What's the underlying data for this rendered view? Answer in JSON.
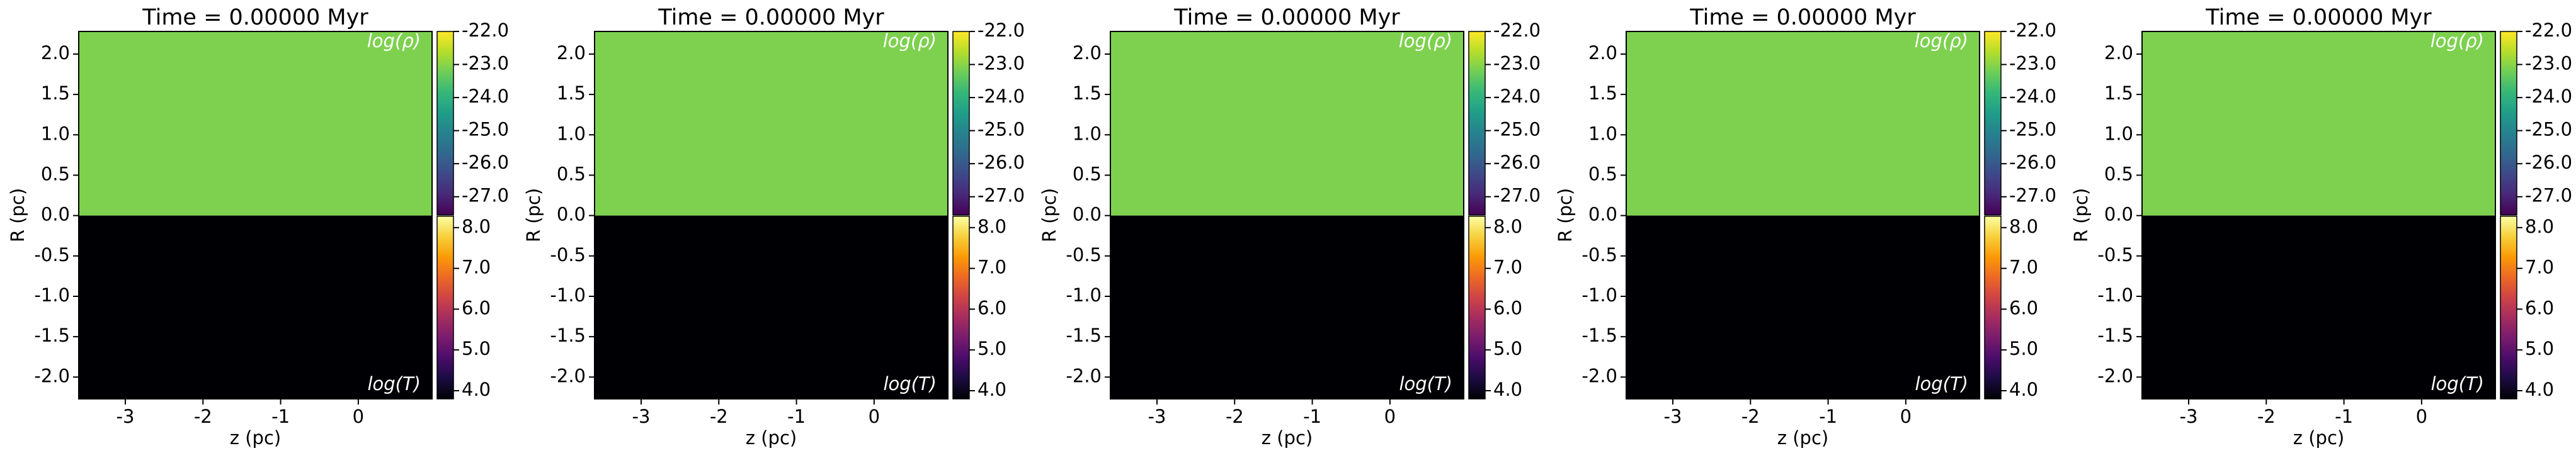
{
  "chart_data": [
    {
      "type": "heatmap",
      "title": "Time = 0.00000 Myr",
      "xlabel": "z (pc)",
      "ylabel": "R (pc)",
      "xlim": [
        -3.6,
        0.95
      ],
      "ylim": [
        -2.27,
        2.28
      ],
      "xticks": [
        -3,
        -2,
        -1,
        0
      ],
      "yticks": [
        {
          "value": -2,
          "label": "-2.0"
        },
        -1.5,
        {
          "value": -1,
          "label": "-1.0"
        },
        -0.5,
        {
          "value": 0,
          "label": "0.0"
        },
        0.5,
        {
          "value": 1,
          "label": "1.0"
        },
        1.5,
        {
          "value": 2,
          "label": "2.0"
        }
      ],
      "split": 0,
      "regions": [
        {
          "label": "log(ρ)",
          "value": -23.1,
          "clim": [
            -27.55,
            -22
          ],
          "cticks": [
            {
              "value": -27,
              "label": "-27.0"
            },
            {
              "value": -26,
              "label": "-26.0"
            },
            {
              "value": -25,
              "label": "-25.0"
            },
            {
              "value": -24,
              "label": "-24.0"
            },
            {
              "value": -23,
              "label": "-23.0"
            },
            {
              "value": -22,
              "label": "-22.0"
            }
          ],
          "colors": [
            "#440154",
            "#482878",
            "#3e4989",
            "#31688e",
            "#26828e",
            "#1f9e89",
            "#35b779",
            "#6ece58",
            "#b5de2b",
            "#fde725"
          ]
        },
        {
          "label": "log(T)",
          "value": 3.8,
          "clim": [
            3.8,
            8.28
          ],
          "cticks": [
            {
              "value": 4,
              "label": "4.0"
            },
            {
              "value": 5,
              "label": "5.0"
            },
            {
              "value": 6,
              "label": "6.0"
            },
            {
              "value": 7,
              "label": "7.0"
            },
            {
              "value": 8,
              "label": "8.0"
            }
          ],
          "colors": [
            "#000004",
            "#1b0c41",
            "#4a0c6b",
            "#781c6d",
            "#a52c60",
            "#cf4446",
            "#ed6925",
            "#fb9b06",
            "#f7d13d",
            "#fcffa4"
          ]
        }
      ]
    },
    {
      "type": "heatmap",
      "title": "Time = 0.00000 Myr",
      "xlabel": "z (pc)",
      "ylabel": "R (pc)",
      "xlim": [
        -3.6,
        0.95
      ],
      "ylim": [
        -2.27,
        2.28
      ],
      "xticks": [
        -3,
        -2,
        -1,
        0
      ],
      "yticks": [
        {
          "value": -2,
          "label": "-2.0"
        },
        -1.5,
        {
          "value": -1,
          "label": "-1.0"
        },
        -0.5,
        {
          "value": 0,
          "label": "0.0"
        },
        0.5,
        {
          "value": 1,
          "label": "1.0"
        },
        1.5,
        {
          "value": 2,
          "label": "2.0"
        }
      ],
      "split": 0,
      "regions": [
        {
          "label": "log(ρ)",
          "value": -23.1,
          "clim": [
            -27.55,
            -22
          ],
          "cticks": [
            {
              "value": -27,
              "label": "-27.0"
            },
            {
              "value": -26,
              "label": "-26.0"
            },
            {
              "value": -25,
              "label": "-25.0"
            },
            {
              "value": -24,
              "label": "-24.0"
            },
            {
              "value": -23,
              "label": "-23.0"
            },
            {
              "value": -22,
              "label": "-22.0"
            }
          ],
          "colors": [
            "#440154",
            "#482878",
            "#3e4989",
            "#31688e",
            "#26828e",
            "#1f9e89",
            "#35b779",
            "#6ece58",
            "#b5de2b",
            "#fde725"
          ]
        },
        {
          "label": "log(T)",
          "value": 3.8,
          "clim": [
            3.8,
            8.28
          ],
          "cticks": [
            {
              "value": 4,
              "label": "4.0"
            },
            {
              "value": 5,
              "label": "5.0"
            },
            {
              "value": 6,
              "label": "6.0"
            },
            {
              "value": 7,
              "label": "7.0"
            },
            {
              "value": 8,
              "label": "8.0"
            }
          ],
          "colors": [
            "#000004",
            "#1b0c41",
            "#4a0c6b",
            "#781c6d",
            "#a52c60",
            "#cf4446",
            "#ed6925",
            "#fb9b06",
            "#f7d13d",
            "#fcffa4"
          ]
        }
      ]
    },
    {
      "type": "heatmap",
      "title": "Time = 0.00000 Myr",
      "xlabel": "z (pc)",
      "ylabel": "R (pc)",
      "xlim": [
        -3.6,
        0.95
      ],
      "ylim": [
        -2.27,
        2.28
      ],
      "xticks": [
        -3,
        -2,
        -1,
        0
      ],
      "yticks": [
        {
          "value": -2,
          "label": "-2.0"
        },
        -1.5,
        {
          "value": -1,
          "label": "-1.0"
        },
        -0.5,
        {
          "value": 0,
          "label": "0.0"
        },
        0.5,
        {
          "value": 1,
          "label": "1.0"
        },
        1.5,
        {
          "value": 2,
          "label": "2.0"
        }
      ],
      "split": 0,
      "regions": [
        {
          "label": "log(ρ)",
          "value": -23.1,
          "clim": [
            -27.55,
            -22
          ],
          "cticks": [
            {
              "value": -27,
              "label": "-27.0"
            },
            {
              "value": -26,
              "label": "-26.0"
            },
            {
              "value": -25,
              "label": "-25.0"
            },
            {
              "value": -24,
              "label": "-24.0"
            },
            {
              "value": -23,
              "label": "-23.0"
            },
            {
              "value": -22,
              "label": "-22.0"
            }
          ],
          "colors": [
            "#440154",
            "#482878",
            "#3e4989",
            "#31688e",
            "#26828e",
            "#1f9e89",
            "#35b779",
            "#6ece58",
            "#b5de2b",
            "#fde725"
          ]
        },
        {
          "label": "log(T)",
          "value": 3.8,
          "clim": [
            3.8,
            8.28
          ],
          "cticks": [
            {
              "value": 4,
              "label": "4.0"
            },
            {
              "value": 5,
              "label": "5.0"
            },
            {
              "value": 6,
              "label": "6.0"
            },
            {
              "value": 7,
              "label": "7.0"
            },
            {
              "value": 8,
              "label": "8.0"
            }
          ],
          "colors": [
            "#000004",
            "#1b0c41",
            "#4a0c6b",
            "#781c6d",
            "#a52c60",
            "#cf4446",
            "#ed6925",
            "#fb9b06",
            "#f7d13d",
            "#fcffa4"
          ]
        }
      ]
    },
    {
      "type": "heatmap",
      "title": "Time = 0.00000 Myr",
      "xlabel": "z (pc)",
      "ylabel": "R (pc)",
      "xlim": [
        -3.6,
        0.95
      ],
      "ylim": [
        -2.27,
        2.28
      ],
      "xticks": [
        -3,
        -2,
        -1,
        0
      ],
      "yticks": [
        {
          "value": -2,
          "label": "-2.0"
        },
        -1.5,
        {
          "value": -1,
          "label": "-1.0"
        },
        -0.5,
        {
          "value": 0,
          "label": "0.0"
        },
        0.5,
        {
          "value": 1,
          "label": "1.0"
        },
        1.5,
        {
          "value": 2,
          "label": "2.0"
        }
      ],
      "split": 0,
      "regions": [
        {
          "label": "log(ρ)",
          "value": -23.1,
          "clim": [
            -27.55,
            -22
          ],
          "cticks": [
            {
              "value": -27,
              "label": "-27.0"
            },
            {
              "value": -26,
              "label": "-26.0"
            },
            {
              "value": -25,
              "label": "-25.0"
            },
            {
              "value": -24,
              "label": "-24.0"
            },
            {
              "value": -23,
              "label": "-23.0"
            },
            {
              "value": -22,
              "label": "-22.0"
            }
          ],
          "colors": [
            "#440154",
            "#482878",
            "#3e4989",
            "#31688e",
            "#26828e",
            "#1f9e89",
            "#35b779",
            "#6ece58",
            "#b5de2b",
            "#fde725"
          ]
        },
        {
          "label": "log(T)",
          "value": 3.8,
          "clim": [
            3.8,
            8.28
          ],
          "cticks": [
            {
              "value": 4,
              "label": "4.0"
            },
            {
              "value": 5,
              "label": "5.0"
            },
            {
              "value": 6,
              "label": "6.0"
            },
            {
              "value": 7,
              "label": "7.0"
            },
            {
              "value": 8,
              "label": "8.0"
            }
          ],
          "colors": [
            "#000004",
            "#1b0c41",
            "#4a0c6b",
            "#781c6d",
            "#a52c60",
            "#cf4446",
            "#ed6925",
            "#fb9b06",
            "#f7d13d",
            "#fcffa4"
          ]
        }
      ]
    },
    {
      "type": "heatmap",
      "title": "Time = 0.00000 Myr",
      "xlabel": "z (pc)",
      "ylabel": "R (pc)",
      "xlim": [
        -3.6,
        0.95
      ],
      "ylim": [
        -2.27,
        2.28
      ],
      "xticks": [
        -3,
        -2,
        -1,
        0
      ],
      "yticks": [
        {
          "value": -2,
          "label": "-2.0"
        },
        -1.5,
        {
          "value": -1,
          "label": "-1.0"
        },
        -0.5,
        {
          "value": 0,
          "label": "0.0"
        },
        0.5,
        {
          "value": 1,
          "label": "1.0"
        },
        1.5,
        {
          "value": 2,
          "label": "2.0"
        }
      ],
      "split": 0,
      "regions": [
        {
          "label": "log(ρ)",
          "value": -23.1,
          "clim": [
            -27.55,
            -22
          ],
          "cticks": [
            {
              "value": -27,
              "label": "-27.0"
            },
            {
              "value": -26,
              "label": "-26.0"
            },
            {
              "value": -25,
              "label": "-25.0"
            },
            {
              "value": -24,
              "label": "-24.0"
            },
            {
              "value": -23,
              "label": "-23.0"
            },
            {
              "value": -22,
              "label": "-22.0"
            }
          ],
          "colors": [
            "#440154",
            "#482878",
            "#3e4989",
            "#31688e",
            "#26828e",
            "#1f9e89",
            "#35b779",
            "#6ece58",
            "#b5de2b",
            "#fde725"
          ]
        },
        {
          "label": "log(T)",
          "value": 3.8,
          "clim": [
            3.8,
            8.28
          ],
          "cticks": [
            {
              "value": 4,
              "label": "4.0"
            },
            {
              "value": 5,
              "label": "5.0"
            },
            {
              "value": 6,
              "label": "6.0"
            },
            {
              "value": 7,
              "label": "7.0"
            },
            {
              "value": 8,
              "label": "8.0"
            }
          ],
          "colors": [
            "#000004",
            "#1b0c41",
            "#4a0c6b",
            "#781c6d",
            "#a52c60",
            "#cf4446",
            "#ed6925",
            "#fb9b06",
            "#f7d13d",
            "#fcffa4"
          ]
        }
      ]
    }
  ]
}
